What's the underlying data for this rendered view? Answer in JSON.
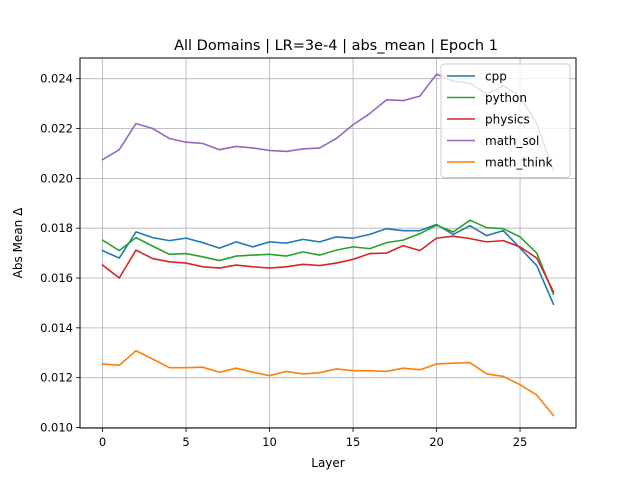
{
  "chart_data": {
    "type": "line",
    "title": "All Domains | LR=3e-4 | abs_mean | Epoch 1",
    "xlabel": "Layer",
    "ylabel": "Abs Mean Δ",
    "xlim": [
      -1.35,
      28.35
    ],
    "ylim": [
      0.00998,
      0.02483
    ],
    "xticks": [
      0,
      5,
      10,
      15,
      20,
      25
    ],
    "yticks": [
      0.01,
      0.012,
      0.014,
      0.016,
      0.018,
      0.02,
      0.022,
      0.024
    ],
    "ytick_labels": [
      "0.010",
      "0.012",
      "0.014",
      "0.016",
      "0.018",
      "0.020",
      "0.022",
      "0.024"
    ],
    "grid": true,
    "legend_position": "top-right",
    "x": [
      0,
      1,
      2,
      3,
      4,
      5,
      6,
      7,
      8,
      9,
      10,
      11,
      12,
      13,
      14,
      15,
      16,
      17,
      18,
      19,
      20,
      21,
      22,
      23,
      24,
      25,
      26,
      27
    ],
    "series": [
      {
        "name": "cpp",
        "color": "#1f77b4",
        "values": [
          0.0171,
          0.0168,
          0.01785,
          0.01762,
          0.0175,
          0.0176,
          0.01742,
          0.0172,
          0.01745,
          0.01725,
          0.01745,
          0.0174,
          0.01755,
          0.01745,
          0.01765,
          0.0176,
          0.01775,
          0.01798,
          0.0179,
          0.0179,
          0.01815,
          0.01775,
          0.0181,
          0.0177,
          0.0179,
          0.0172,
          0.0165,
          0.01495
        ]
      },
      {
        "name": "python",
        "color": "#2ca02c",
        "values": [
          0.01752,
          0.0171,
          0.01762,
          0.01728,
          0.01695,
          0.01698,
          0.01685,
          0.0167,
          0.01688,
          0.01692,
          0.01695,
          0.01688,
          0.01705,
          0.01692,
          0.01712,
          0.01725,
          0.01718,
          0.01742,
          0.01752,
          0.01778,
          0.01812,
          0.01785,
          0.01832,
          0.01802,
          0.01798,
          0.01765,
          0.017,
          0.01535
        ]
      },
      {
        "name": "physics",
        "color": "#d62728",
        "values": [
          0.01652,
          0.016,
          0.01712,
          0.01678,
          0.01665,
          0.0166,
          0.01645,
          0.0164,
          0.01652,
          0.01645,
          0.0164,
          0.01645,
          0.01655,
          0.0165,
          0.0166,
          0.01675,
          0.01698,
          0.017,
          0.0173,
          0.0171,
          0.0176,
          0.01768,
          0.01758,
          0.01745,
          0.0175,
          0.01725,
          0.0168,
          0.01545
        ]
      },
      {
        "name": "math_sol",
        "color": "#9467bd",
        "values": [
          0.02075,
          0.02115,
          0.0222,
          0.022,
          0.0216,
          0.02145,
          0.0214,
          0.02115,
          0.02128,
          0.02122,
          0.02112,
          0.02108,
          0.02118,
          0.02122,
          0.0216,
          0.02215,
          0.0226,
          0.02315,
          0.02312,
          0.0233,
          0.02418,
          0.0239,
          0.02382,
          0.02338,
          0.02372,
          0.02328,
          0.0222,
          0.0203
        ]
      },
      {
        "name": "math_think",
        "color": "#ff7f0e",
        "values": [
          0.01255,
          0.0125,
          0.01308,
          0.01275,
          0.0124,
          0.0124,
          0.01242,
          0.01222,
          0.01238,
          0.01222,
          0.01208,
          0.01225,
          0.01215,
          0.0122,
          0.01235,
          0.01228,
          0.01228,
          0.01225,
          0.01238,
          0.01232,
          0.01255,
          0.01258,
          0.0126,
          0.01215,
          0.01205,
          0.01172,
          0.0113,
          0.01048
        ]
      }
    ]
  }
}
